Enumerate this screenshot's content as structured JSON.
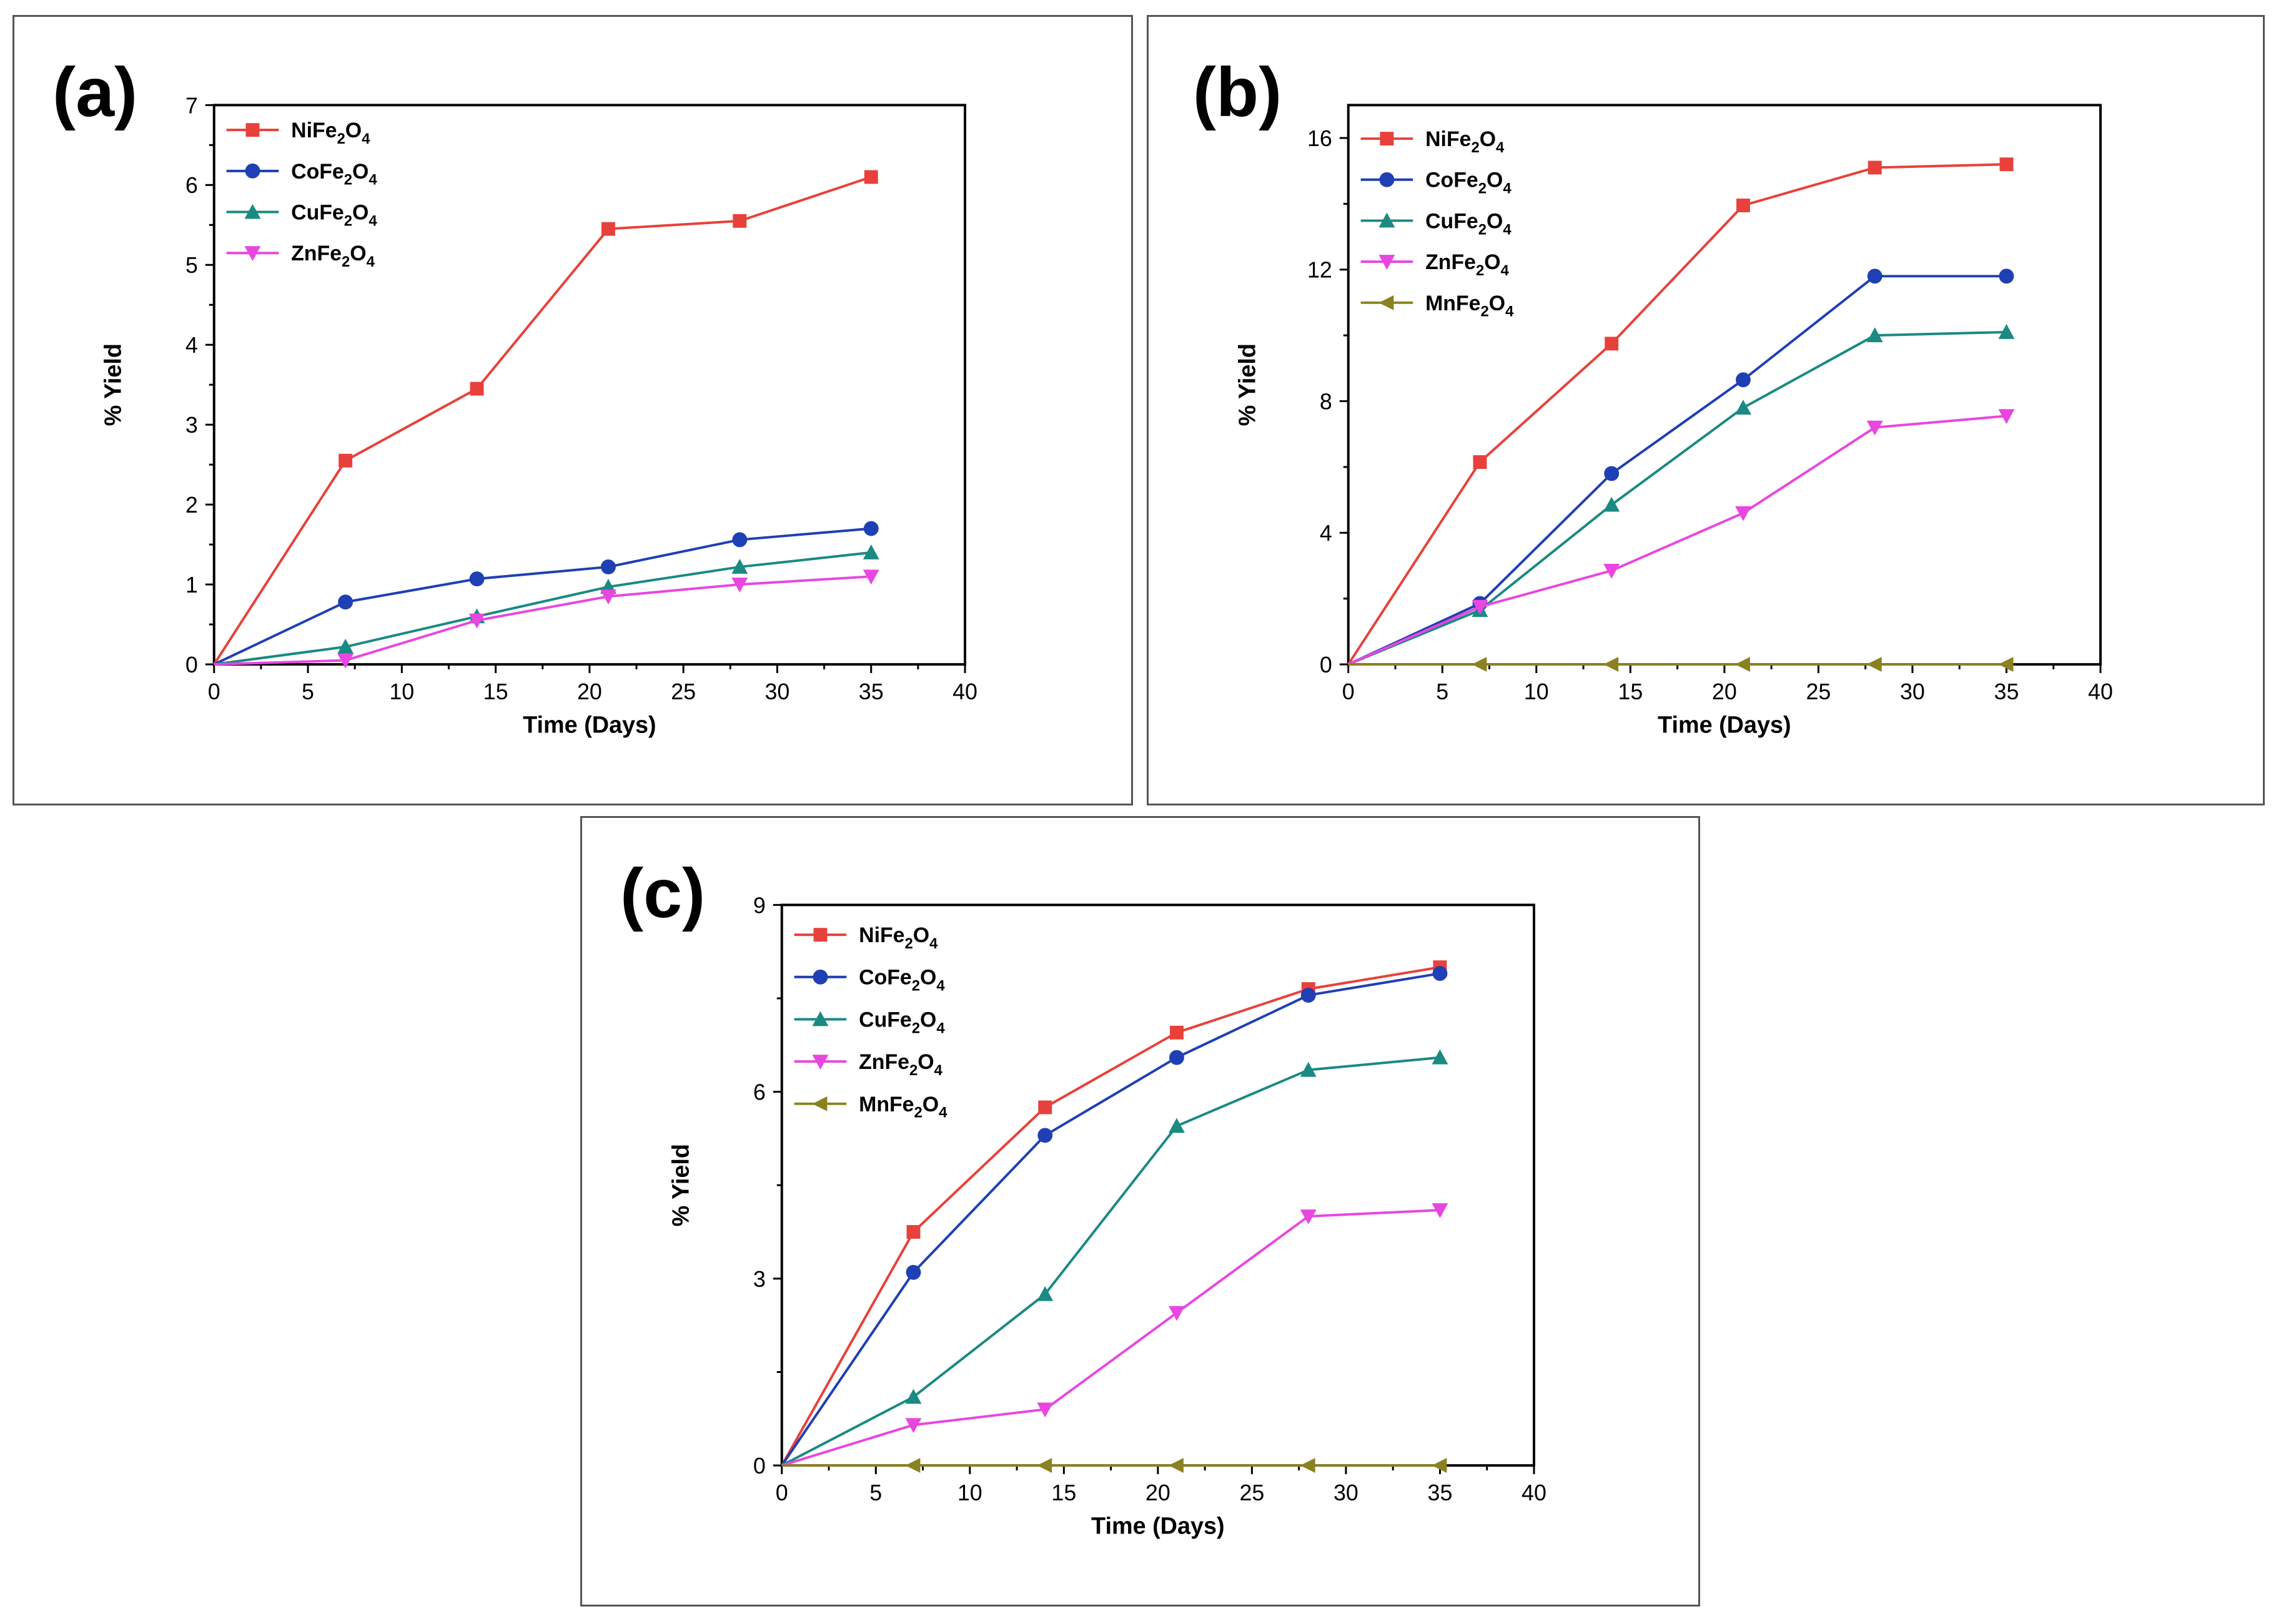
{
  "chart_data": [
    {
      "panel": "(a)",
      "type": "line",
      "xlabel": "Time (Days)",
      "ylabel": "% Yield",
      "xlim": [
        0,
        40
      ],
      "ylim": [
        0,
        7
      ],
      "xticks": [
        0,
        5,
        10,
        15,
        20,
        25,
        30,
        35,
        40
      ],
      "yticks": [
        0,
        1,
        2,
        3,
        4,
        5,
        6,
        7
      ],
      "legend_position": "top-left",
      "x": [
        0,
        7,
        14,
        21,
        28,
        35
      ],
      "series": [
        {
          "name": "NiFe",
          "sub1": "2",
          "mid": "O",
          "sub2": "4",
          "color": "#e8413b",
          "marker": "square",
          "values": [
            0,
            2.55,
            3.45,
            5.45,
            5.55,
            6.1
          ]
        },
        {
          "name": "CoFe",
          "sub1": "2",
          "mid": "O",
          "sub2": "4",
          "color": "#1f3fb4",
          "marker": "circle",
          "values": [
            0,
            0.78,
            1.07,
            1.22,
            1.56,
            1.7
          ]
        },
        {
          "name": "CuFe",
          "sub1": "2",
          "mid": "O",
          "sub2": "4",
          "color": "#1a8a82",
          "marker": "triangle-up",
          "values": [
            0,
            0.22,
            0.6,
            0.97,
            1.22,
            1.4
          ]
        },
        {
          "name": "ZnFe",
          "sub1": "2",
          "mid": "O",
          "sub2": "4",
          "color": "#e946e0",
          "marker": "triangle-down",
          "values": [
            0,
            0.05,
            0.55,
            0.85,
            1.0,
            1.1
          ]
        }
      ]
    },
    {
      "panel": "(b)",
      "type": "line",
      "xlabel": "Time (Days)",
      "ylabel": "% Yield",
      "xlim": [
        0,
        40
      ],
      "ylim": [
        0,
        17
      ],
      "xticks": [
        0,
        5,
        10,
        15,
        20,
        25,
        30,
        35,
        40
      ],
      "yticks": [
        0,
        4,
        8,
        12,
        16
      ],
      "legend_position": "top-left",
      "x": [
        0,
        7,
        14,
        21,
        28,
        35
      ],
      "series": [
        {
          "name": "NiFe",
          "sub1": "2",
          "mid": "O",
          "sub2": "4",
          "color": "#e8413b",
          "marker": "square",
          "values": [
            0,
            6.15,
            9.75,
            13.95,
            15.1,
            15.2
          ]
        },
        {
          "name": "CoFe",
          "sub1": "2",
          "mid": "O",
          "sub2": "4",
          "color": "#1f3fb4",
          "marker": "circle",
          "values": [
            0,
            1.85,
            5.8,
            8.65,
            11.8,
            11.8
          ]
        },
        {
          "name": "CuFe",
          "sub1": "2",
          "mid": "O",
          "sub2": "4",
          "color": "#1a8a82",
          "marker": "triangle-up",
          "values": [
            0,
            1.65,
            4.85,
            7.8,
            10.0,
            10.1
          ]
        },
        {
          "name": "ZnFe",
          "sub1": "2",
          "mid": "O",
          "sub2": "4",
          "color": "#e946e0",
          "marker": "triangle-down",
          "values": [
            0,
            1.75,
            2.85,
            4.6,
            7.2,
            7.55
          ]
        },
        {
          "name": "MnFe",
          "sub1": "2",
          "mid": "O",
          "sub2": "4",
          "color": "#8a8220",
          "marker": "triangle-left",
          "values": [
            0,
            0,
            0,
            0,
            0,
            0
          ]
        }
      ]
    },
    {
      "panel": "(c)",
      "type": "line",
      "xlabel": "Time (Days)",
      "ylabel": "% Yield",
      "xlim": [
        0,
        40
      ],
      "ylim": [
        0,
        9
      ],
      "xticks": [
        0,
        5,
        10,
        15,
        20,
        25,
        30,
        35,
        40
      ],
      "yticks": [
        0,
        3,
        6,
        9
      ],
      "legend_position": "top-left",
      "x": [
        0,
        7,
        14,
        21,
        28,
        35
      ],
      "series": [
        {
          "name": "NiFe",
          "sub1": "2",
          "mid": "O",
          "sub2": "4",
          "color": "#e8413b",
          "marker": "square",
          "values": [
            0,
            3.75,
            5.75,
            6.95,
            7.65,
            8.0
          ]
        },
        {
          "name": "CoFe",
          "sub1": "2",
          "mid": "O",
          "sub2": "4",
          "color": "#1f3fb4",
          "marker": "circle",
          "values": [
            0,
            3.1,
            5.3,
            6.55,
            7.55,
            7.9
          ]
        },
        {
          "name": "CuFe",
          "sub1": "2",
          "mid": "O",
          "sub2": "4",
          "color": "#1a8a82",
          "marker": "triangle-up",
          "values": [
            0,
            1.1,
            2.75,
            5.45,
            6.35,
            6.55
          ]
        },
        {
          "name": "ZnFe",
          "sub1": "2",
          "mid": "O",
          "sub2": "4",
          "color": "#e946e0",
          "marker": "triangle-down",
          "values": [
            0,
            0.65,
            0.9,
            2.45,
            4.0,
            4.1
          ]
        },
        {
          "name": "MnFe",
          "sub1": "2",
          "mid": "O",
          "sub2": "4",
          "color": "#8a8220",
          "marker": "triangle-left",
          "values": [
            0,
            0,
            0,
            0,
            0,
            0
          ]
        }
      ]
    }
  ]
}
